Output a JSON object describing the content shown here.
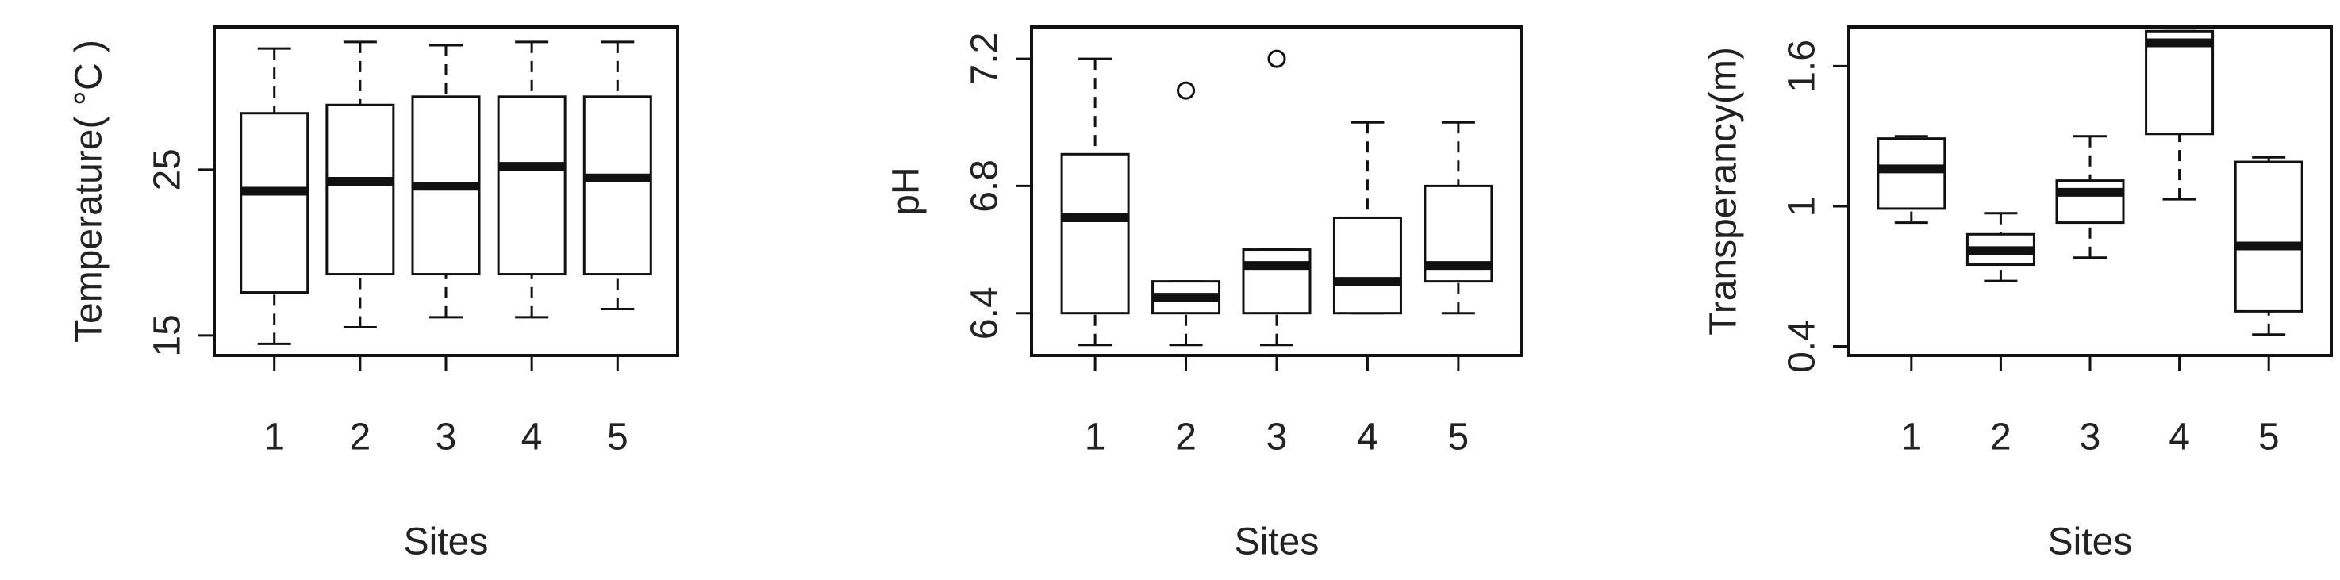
{
  "chart_data": [
    {
      "type": "box",
      "y_label": "Temperature( °C )",
      "x_label": "Sites",
      "categories": [
        "1",
        "2",
        "3",
        "4",
        "5"
      ],
      "boxes": [
        {
          "min": 14.5,
          "q1": 17.6,
          "median": 23.7,
          "q3": 28.4,
          "max": 32.3
        },
        {
          "min": 15.5,
          "q1": 18.7,
          "median": 24.3,
          "q3": 28.9,
          "max": 32.7
        },
        {
          "min": 16.1,
          "q1": 18.7,
          "median": 24.0,
          "q3": 29.4,
          "max": 32.5
        },
        {
          "min": 16.1,
          "q1": 18.7,
          "median": 25.2,
          "q3": 29.4,
          "max": 32.7
        },
        {
          "min": 16.6,
          "q1": 18.7,
          "median": 24.5,
          "q3": 29.4,
          "max": 32.7
        }
      ],
      "ylim": [
        13.8,
        33.6
      ],
      "yticks": [
        15,
        25
      ]
    },
    {
      "type": "box",
      "y_label": "pH",
      "x_label": "Sites",
      "categories": [
        "1",
        "2",
        "3",
        "4",
        "5"
      ],
      "boxes": [
        {
          "min": 6.3,
          "q1": 6.4,
          "median": 6.7,
          "q3": 6.9,
          "max": 7.2
        },
        {
          "min": 6.3,
          "q1": 6.4,
          "median": 6.45,
          "q3": 6.5,
          "max": 6.5,
          "outliers": [
            7.1
          ]
        },
        {
          "min": 6.3,
          "q1": 6.4,
          "median": 6.55,
          "q3": 6.6,
          "max": 6.6,
          "outliers": [
            7.2
          ]
        },
        {
          "min": 6.4,
          "q1": 6.4,
          "median": 6.5,
          "q3": 6.7,
          "max": 7.0
        },
        {
          "min": 6.4,
          "q1": 6.5,
          "median": 6.55,
          "q3": 6.8,
          "max": 7.0
        }
      ],
      "ylim": [
        6.267,
        7.3
      ],
      "yticks": [
        6.4,
        6.8,
        7.2
      ]
    },
    {
      "type": "box",
      "y_label": "Transperancy(m)",
      "x_label": "Sites",
      "categories": [
        "1",
        "2",
        "3",
        "4",
        "5"
      ],
      "boxes": [
        {
          "min": 0.93,
          "q1": 0.99,
          "median": 1.16,
          "q3": 1.29,
          "max": 1.3
        },
        {
          "min": 0.68,
          "q1": 0.75,
          "median": 0.81,
          "q3": 0.88,
          "max": 0.97
        },
        {
          "min": 0.78,
          "q1": 0.93,
          "median": 1.06,
          "q3": 1.11,
          "max": 1.3
        },
        {
          "min": 1.03,
          "q1": 1.31,
          "median": 1.7,
          "q3": 1.75,
          "max": 1.75
        },
        {
          "min": 0.45,
          "q1": 0.55,
          "median": 0.83,
          "q3": 1.19,
          "max": 1.21
        }
      ],
      "ylim": [
        0.361,
        1.768
      ],
      "yticks": [
        0.4,
        1.0,
        1.6
      ]
    }
  ]
}
